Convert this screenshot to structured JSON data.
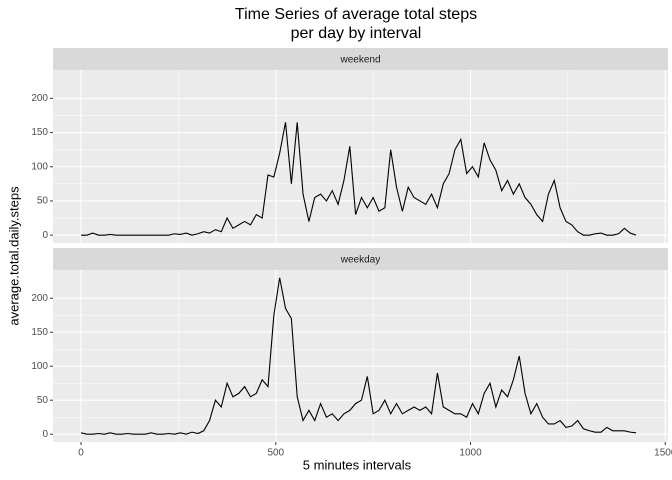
{
  "chart_data": {
    "type": "line",
    "facet": true,
    "grid": true,
    "title": [
      "Time Series of average total steps",
      "per day by interval"
    ],
    "x_label": "5 minutes intervals",
    "y_label": "average.total.daily.steps",
    "xlim": [
      -72,
      1507
    ],
    "xticks": [
      0,
      500,
      1000,
      1500
    ],
    "ylim": [
      -11.5,
      241.5
    ],
    "yticks": [
      0,
      50,
      100,
      150,
      200
    ],
    "x": [
      0,
      15,
      30,
      45,
      60,
      75,
      90,
      105,
      120,
      135,
      150,
      165,
      180,
      195,
      210,
      225,
      240,
      255,
      270,
      285,
      300,
      315,
      330,
      345,
      360,
      375,
      390,
      405,
      420,
      435,
      450,
      465,
      480,
      495,
      510,
      525,
      540,
      555,
      570,
      585,
      600,
      615,
      630,
      645,
      660,
      675,
      690,
      705,
      720,
      735,
      750,
      765,
      780,
      795,
      810,
      825,
      840,
      855,
      870,
      885,
      900,
      915,
      930,
      945,
      960,
      975,
      990,
      1005,
      1020,
      1035,
      1050,
      1065,
      1080,
      1095,
      1110,
      1125,
      1140,
      1155,
      1170,
      1185,
      1200,
      1215,
      1230,
      1245,
      1260,
      1275,
      1290,
      1305,
      1320,
      1335,
      1350,
      1365,
      1380,
      1395,
      1410,
      1425
    ],
    "series": [
      {
        "name": "weekend",
        "color": "#000000",
        "values": [
          0,
          0,
          3,
          0,
          0,
          1,
          0,
          0,
          0,
          0,
          0,
          0,
          0,
          0,
          0,
          0,
          2,
          1,
          3,
          0,
          2,
          5,
          3,
          8,
          5,
          25,
          10,
          15,
          20,
          15,
          30,
          25,
          88,
          85,
          120,
          165,
          75,
          165,
          60,
          20,
          55,
          60,
          50,
          65,
          45,
          80,
          130,
          30,
          55,
          40,
          55,
          35,
          40,
          125,
          70,
          35,
          70,
          55,
          50,
          45,
          60,
          40,
          75,
          90,
          125,
          140,
          90,
          100,
          85,
          135,
          110,
          95,
          65,
          80,
          60,
          75,
          55,
          45,
          30,
          20,
          60,
          80,
          40,
          20,
          15,
          5,
          0,
          0,
          2,
          3,
          0,
          0,
          2,
          10,
          3,
          0
        ]
      },
      {
        "name": "weekday",
        "color": "#000000",
        "values": [
          2,
          0,
          0,
          1,
          0,
          2,
          0,
          0,
          1,
          0,
          0,
          0,
          2,
          0,
          0,
          1,
          0,
          2,
          0,
          3,
          1,
          5,
          20,
          50,
          40,
          75,
          55,
          60,
          70,
          55,
          60,
          80,
          70,
          175,
          230,
          185,
          170,
          55,
          20,
          35,
          20,
          45,
          25,
          30,
          20,
          30,
          35,
          45,
          50,
          85,
          30,
          35,
          50,
          30,
          45,
          30,
          35,
          40,
          35,
          40,
          30,
          90,
          40,
          35,
          30,
          30,
          25,
          45,
          30,
          60,
          75,
          40,
          65,
          55,
          80,
          115,
          60,
          30,
          45,
          25,
          15,
          15,
          20,
          10,
          12,
          20,
          8,
          5,
          3,
          3,
          10,
          5,
          5,
          5,
          3,
          2
        ]
      }
    ]
  }
}
